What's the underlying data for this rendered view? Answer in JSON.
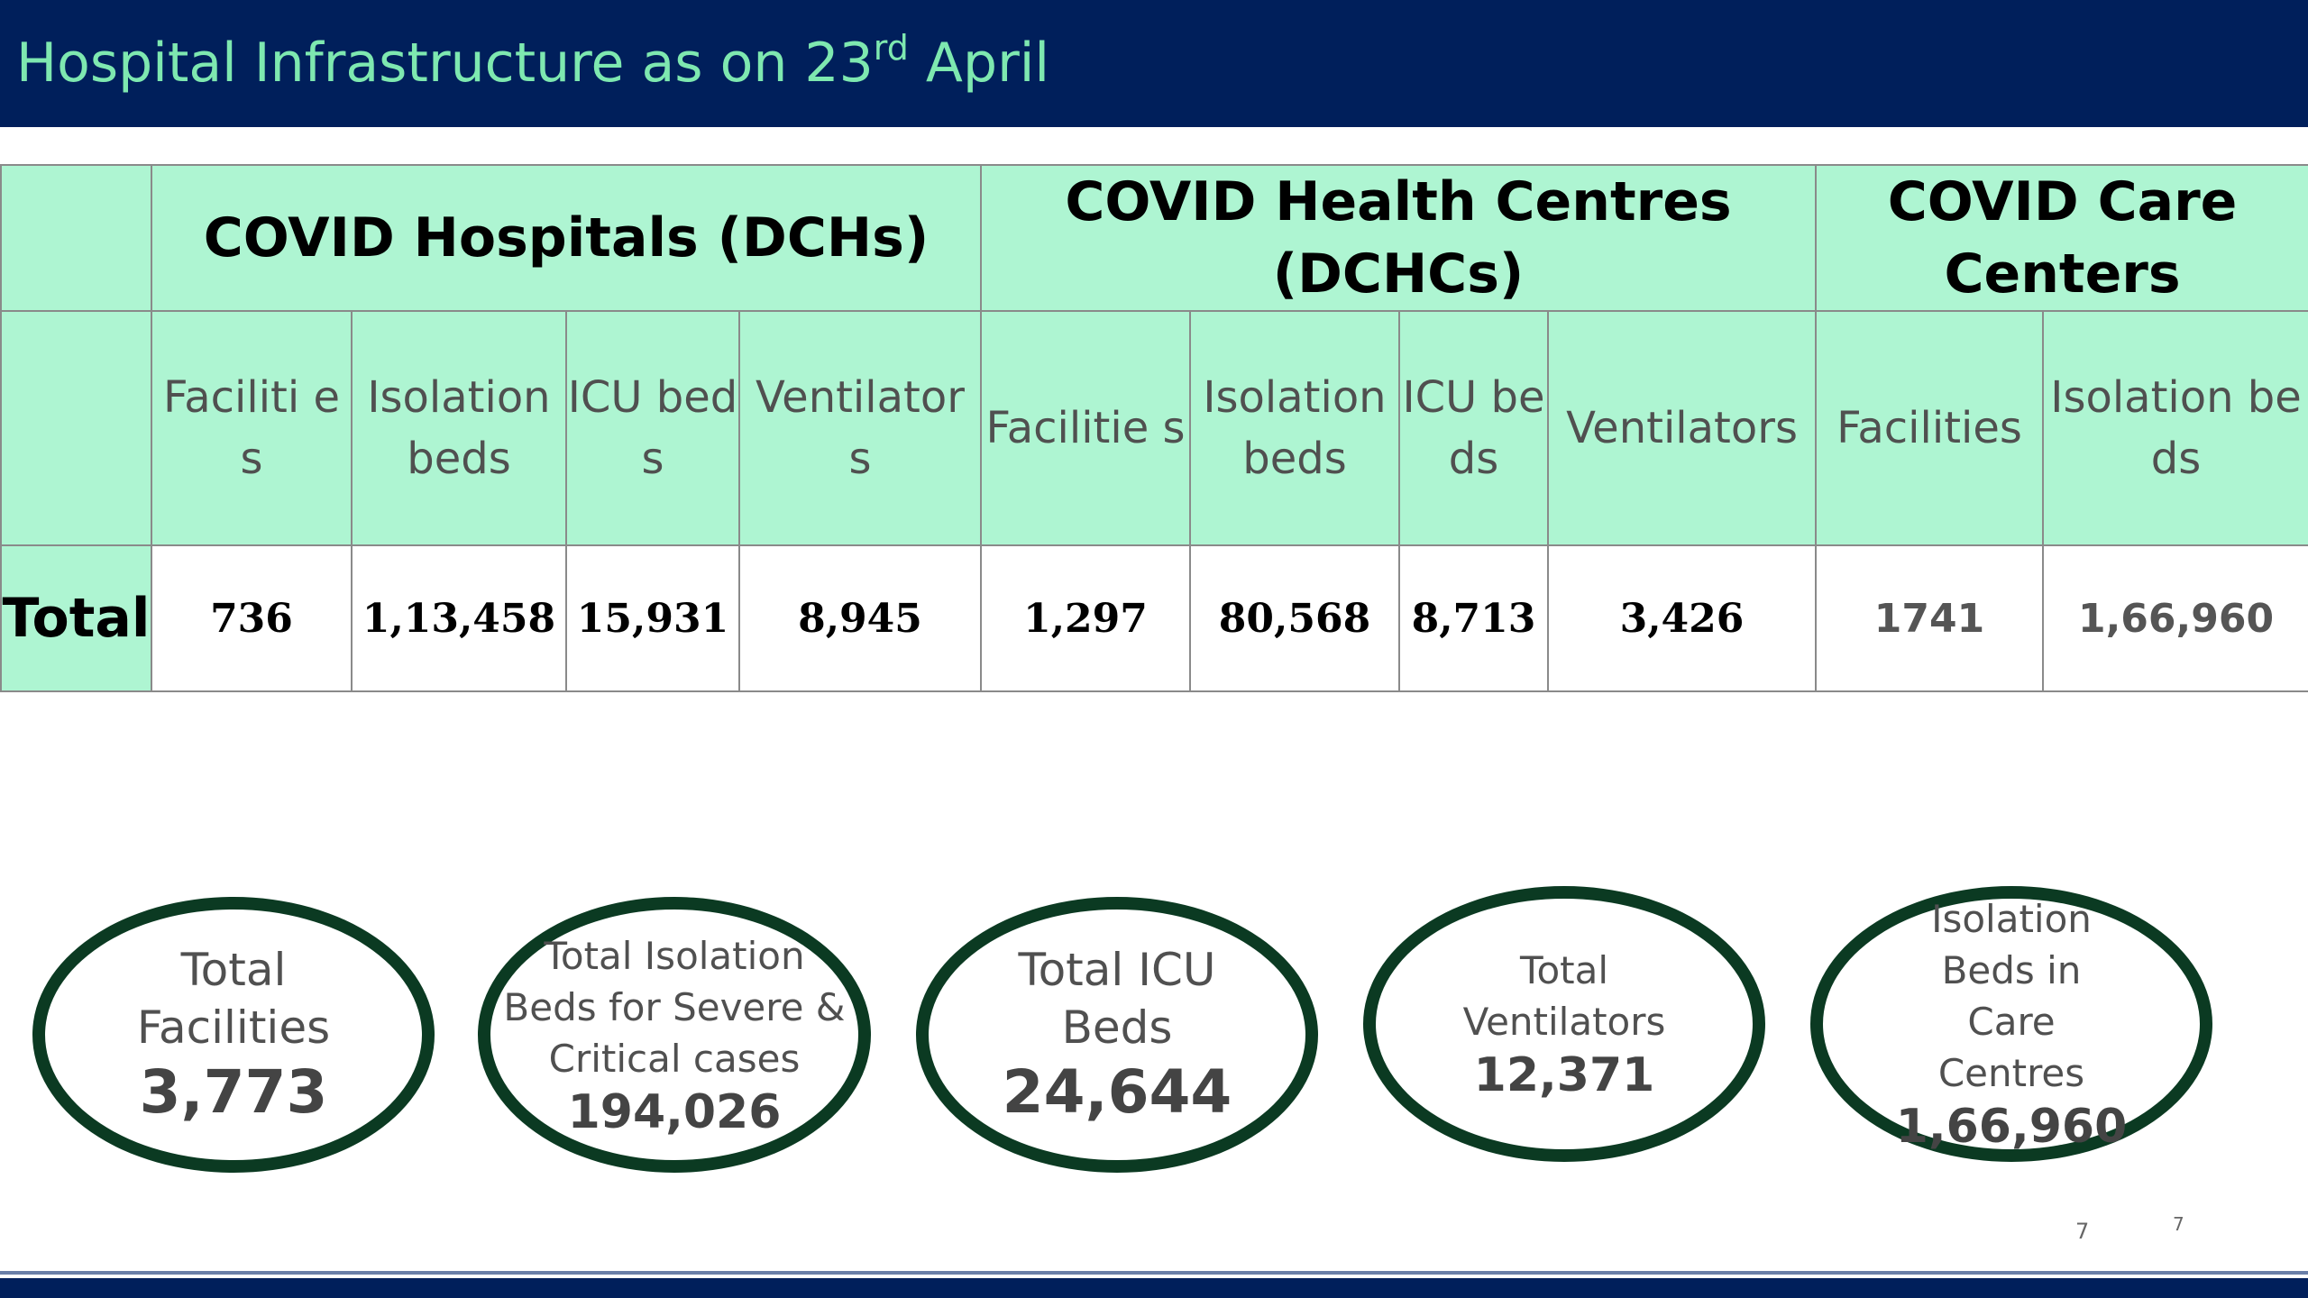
{
  "title": {
    "main": "Hospital Infrastructure as on 23",
    "sup": "rd",
    "end": " April"
  },
  "table": {
    "groups": [
      "COVID Hospitals (DCHs)",
      "COVID Health Centres (DCHCs)",
      "COVID Care Centers"
    ],
    "subheaders": [
      "Faciliti es",
      "Isolation beds",
      "ICU beds",
      "Ventilator s",
      "Facilitie s",
      "Isolation beds",
      "ICU beds",
      "Ventilators",
      "Facilities",
      "Isolation beds"
    ],
    "row_label": "Total",
    "values": [
      "736",
      "1,13,458",
      "15,931",
      "8,945",
      "1,297",
      "80,568",
      "8,713",
      "3,426",
      "1741",
      "1,66,960"
    ]
  },
  "summary": [
    {
      "label": "Total Facilities",
      "value": "3,773"
    },
    {
      "label": "Total Isolation Beds for Severe & Critical cases",
      "value": "194,026"
    },
    {
      "label": "Total ICU Beds",
      "value": "24,644"
    },
    {
      "label": "Total Ventilators",
      "value": "12,371"
    },
    {
      "label": "Isolation Beds in Care Centres",
      "value": "1,66,960"
    }
  ],
  "page_numbers": [
    "7",
    "7"
  ],
  "colors": {
    "header_bg": "#001f5b",
    "title_text": "#7ee8b0",
    "table_header_bg": "#aef5d2",
    "oval_border": "#0b3a22"
  }
}
